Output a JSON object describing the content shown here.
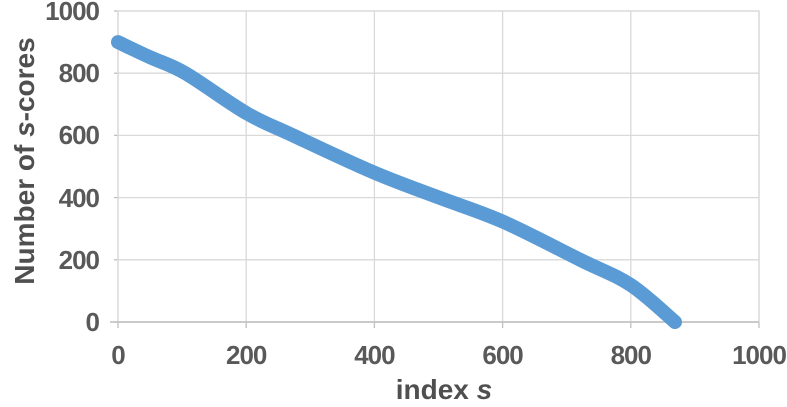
{
  "chart_data": {
    "type": "scatter",
    "title": "",
    "xlabel": {
      "prefix": "index ",
      "italic": "s",
      "suffix": ""
    },
    "ylabel": {
      "prefix": "Number of ",
      "italic": "s",
      "suffix": "-cores"
    },
    "xlim": [
      0,
      1000
    ],
    "ylim": [
      0,
      1000
    ],
    "x_ticks": [
      0,
      200,
      400,
      600,
      800,
      1000
    ],
    "y_ticks": [
      0,
      200,
      400,
      600,
      800,
      1000
    ],
    "grid": true,
    "legend": false,
    "series": [
      {
        "color": "#5B9BD5",
        "points": [
          [
            0,
            900
          ],
          [
            50,
            851
          ],
          [
            105,
            800
          ],
          [
            200,
            672
          ],
          [
            273,
            600
          ],
          [
            400,
            480
          ],
          [
            501,
            400
          ],
          [
            600,
            323
          ],
          [
            721,
            200
          ],
          [
            800,
            119
          ],
          [
            869,
            0
          ]
        ]
      }
    ]
  },
  "colors": {
    "series": "#5B9BD5",
    "gridline": "#D9D9D9",
    "axis": "#BFBFBF",
    "tick_text": "#595959",
    "title_text": "#4F4F4F",
    "background": "#FFFFFF"
  }
}
